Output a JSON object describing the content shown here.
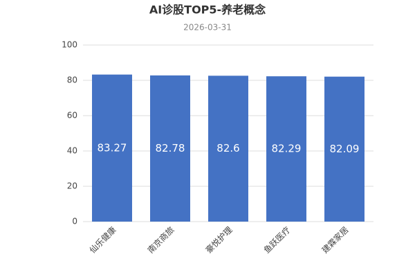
{
  "chart_data": {
    "type": "bar",
    "title": "AI诊股TOP5-养老概念",
    "subtitle": "2026-03-31",
    "categories": [
      "仙乐健康",
      "南京商旅",
      "豪悦护理",
      "鱼跃医疗",
      "建霖家居"
    ],
    "values": [
      83.27,
      82.78,
      82.6,
      82.29,
      82.09
    ],
    "color": "#4472c4",
    "ylim": [
      0,
      100
    ],
    "yticks": [
      0,
      20,
      40,
      60,
      80,
      100
    ],
    "grid": true
  }
}
